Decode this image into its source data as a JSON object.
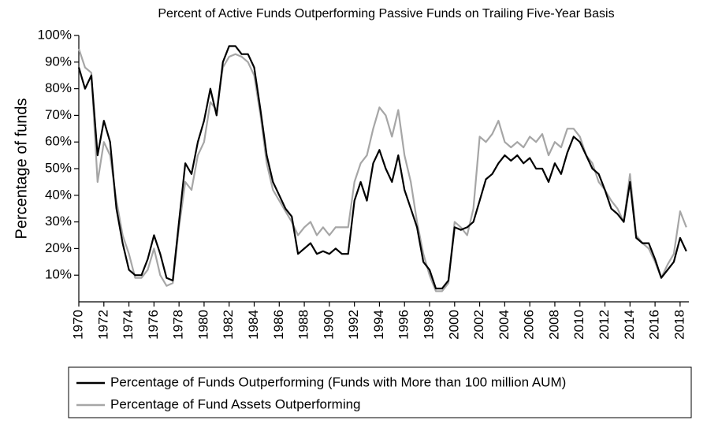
{
  "chart_data": {
    "type": "line",
    "title": "Percent of Active Funds Outperforming Passive Funds on Trailing Five-Year Basis",
    "ylabel": "Percentage of funds",
    "x": [
      1970,
      1970.5,
      1971,
      1971.5,
      1972,
      1972.5,
      1973,
      1973.5,
      1974,
      1974.5,
      1975,
      1975.5,
      1976,
      1976.5,
      1977,
      1977.5,
      1978,
      1978.5,
      1979,
      1979.5,
      1980,
      1980.5,
      1981,
      1981.5,
      1982,
      1982.5,
      1983,
      1983.5,
      1984,
      1984.5,
      1985,
      1985.5,
      1986,
      1986.5,
      1987,
      1987.5,
      1988,
      1988.5,
      1989,
      1989.5,
      1990,
      1990.5,
      1991,
      1991.5,
      1992,
      1992.5,
      1993,
      1993.5,
      1994,
      1994.5,
      1995,
      1995.5,
      1996,
      1996.5,
      1997,
      1997.5,
      1998,
      1998.5,
      1999,
      1999.5,
      2000,
      2000.5,
      2001,
      2001.5,
      2002,
      2002.5,
      2003,
      2003.5,
      2004,
      2004.5,
      2005,
      2005.5,
      2006,
      2006.5,
      2007,
      2007.5,
      2008,
      2008.5,
      2009,
      2009.5,
      2010,
      2010.5,
      2011,
      2011.5,
      2012,
      2012.5,
      2013,
      2013.5,
      2014,
      2014.5,
      2015,
      2015.5,
      2016,
      2016.5,
      2017,
      2017.5,
      2018,
      2018.5
    ],
    "series": [
      {
        "name": "Percentage of Funds Outperforming (Funds with More than 100 million AUM)",
        "color": "#000000",
        "values": [
          88,
          80,
          85,
          55,
          68,
          60,
          35,
          22,
          12,
          10,
          10,
          16,
          25,
          18,
          9,
          8,
          30,
          52,
          48,
          60,
          68,
          80,
          70,
          90,
          96,
          96,
          93,
          93,
          88,
          72,
          55,
          45,
          40,
          35,
          32,
          18,
          20,
          22,
          18,
          19,
          18,
          20,
          18,
          18,
          38,
          45,
          38,
          52,
          57,
          50,
          45,
          55,
          42,
          35,
          28,
          15,
          12,
          5,
          5,
          8,
          28,
          27,
          28,
          30,
          38,
          46,
          48,
          52,
          55,
          53,
          55,
          52,
          54,
          50,
          50,
          45,
          52,
          48,
          56,
          62,
          60,
          55,
          50,
          48,
          42,
          35,
          33,
          30,
          45,
          24,
          22,
          22,
          16,
          9,
          12,
          15,
          24,
          19
        ]
      },
      {
        "name": "Percentage of Fund Assets Outperforming",
        "color": "#a6a6a6",
        "values": [
          95,
          88,
          86,
          45,
          60,
          55,
          38,
          25,
          18,
          9,
          9,
          12,
          20,
          10,
          6,
          7,
          28,
          45,
          42,
          55,
          60,
          75,
          72,
          88,
          92,
          93,
          92,
          90,
          85,
          70,
          52,
          42,
          38,
          34,
          30,
          25,
          28,
          30,
          25,
          28,
          25,
          28,
          28,
          28,
          45,
          52,
          55,
          65,
          73,
          70,
          62,
          72,
          55,
          45,
          30,
          18,
          10,
          4,
          4,
          7,
          30,
          28,
          25,
          35,
          62,
          60,
          63,
          68,
          60,
          58,
          60,
          58,
          62,
          60,
          63,
          55,
          60,
          58,
          65,
          65,
          62,
          55,
          52,
          45,
          42,
          38,
          35,
          30,
          48,
          25,
          22,
          20,
          15,
          9,
          14,
          18,
          34,
          28
        ]
      }
    ],
    "xlim": [
      1970,
      2018.7
    ],
    "xticks": [
      1970,
      1972,
      1974,
      1976,
      1978,
      1980,
      1982,
      1984,
      1986,
      1988,
      1990,
      1992,
      1994,
      1996,
      1998,
      2000,
      2002,
      2004,
      2006,
      2008,
      2010,
      2012,
      2014,
      2016,
      2018
    ],
    "ylim": [
      0,
      100
    ],
    "yticks": [
      {
        "value": 10,
        "label": "10%"
      },
      {
        "value": 20,
        "label": "20%"
      },
      {
        "value": 30,
        "label": "30%"
      },
      {
        "value": 40,
        "label": "40%"
      },
      {
        "value": 50,
        "label": "50%"
      },
      {
        "value": 60,
        "label": "60%"
      },
      {
        "value": 70,
        "label": "70%"
      },
      {
        "value": 80,
        "label": "80%"
      },
      {
        "value": 90,
        "label": "90%"
      },
      {
        "value": 100,
        "label": "100%"
      }
    ],
    "grid": false,
    "legend": "bottom"
  }
}
